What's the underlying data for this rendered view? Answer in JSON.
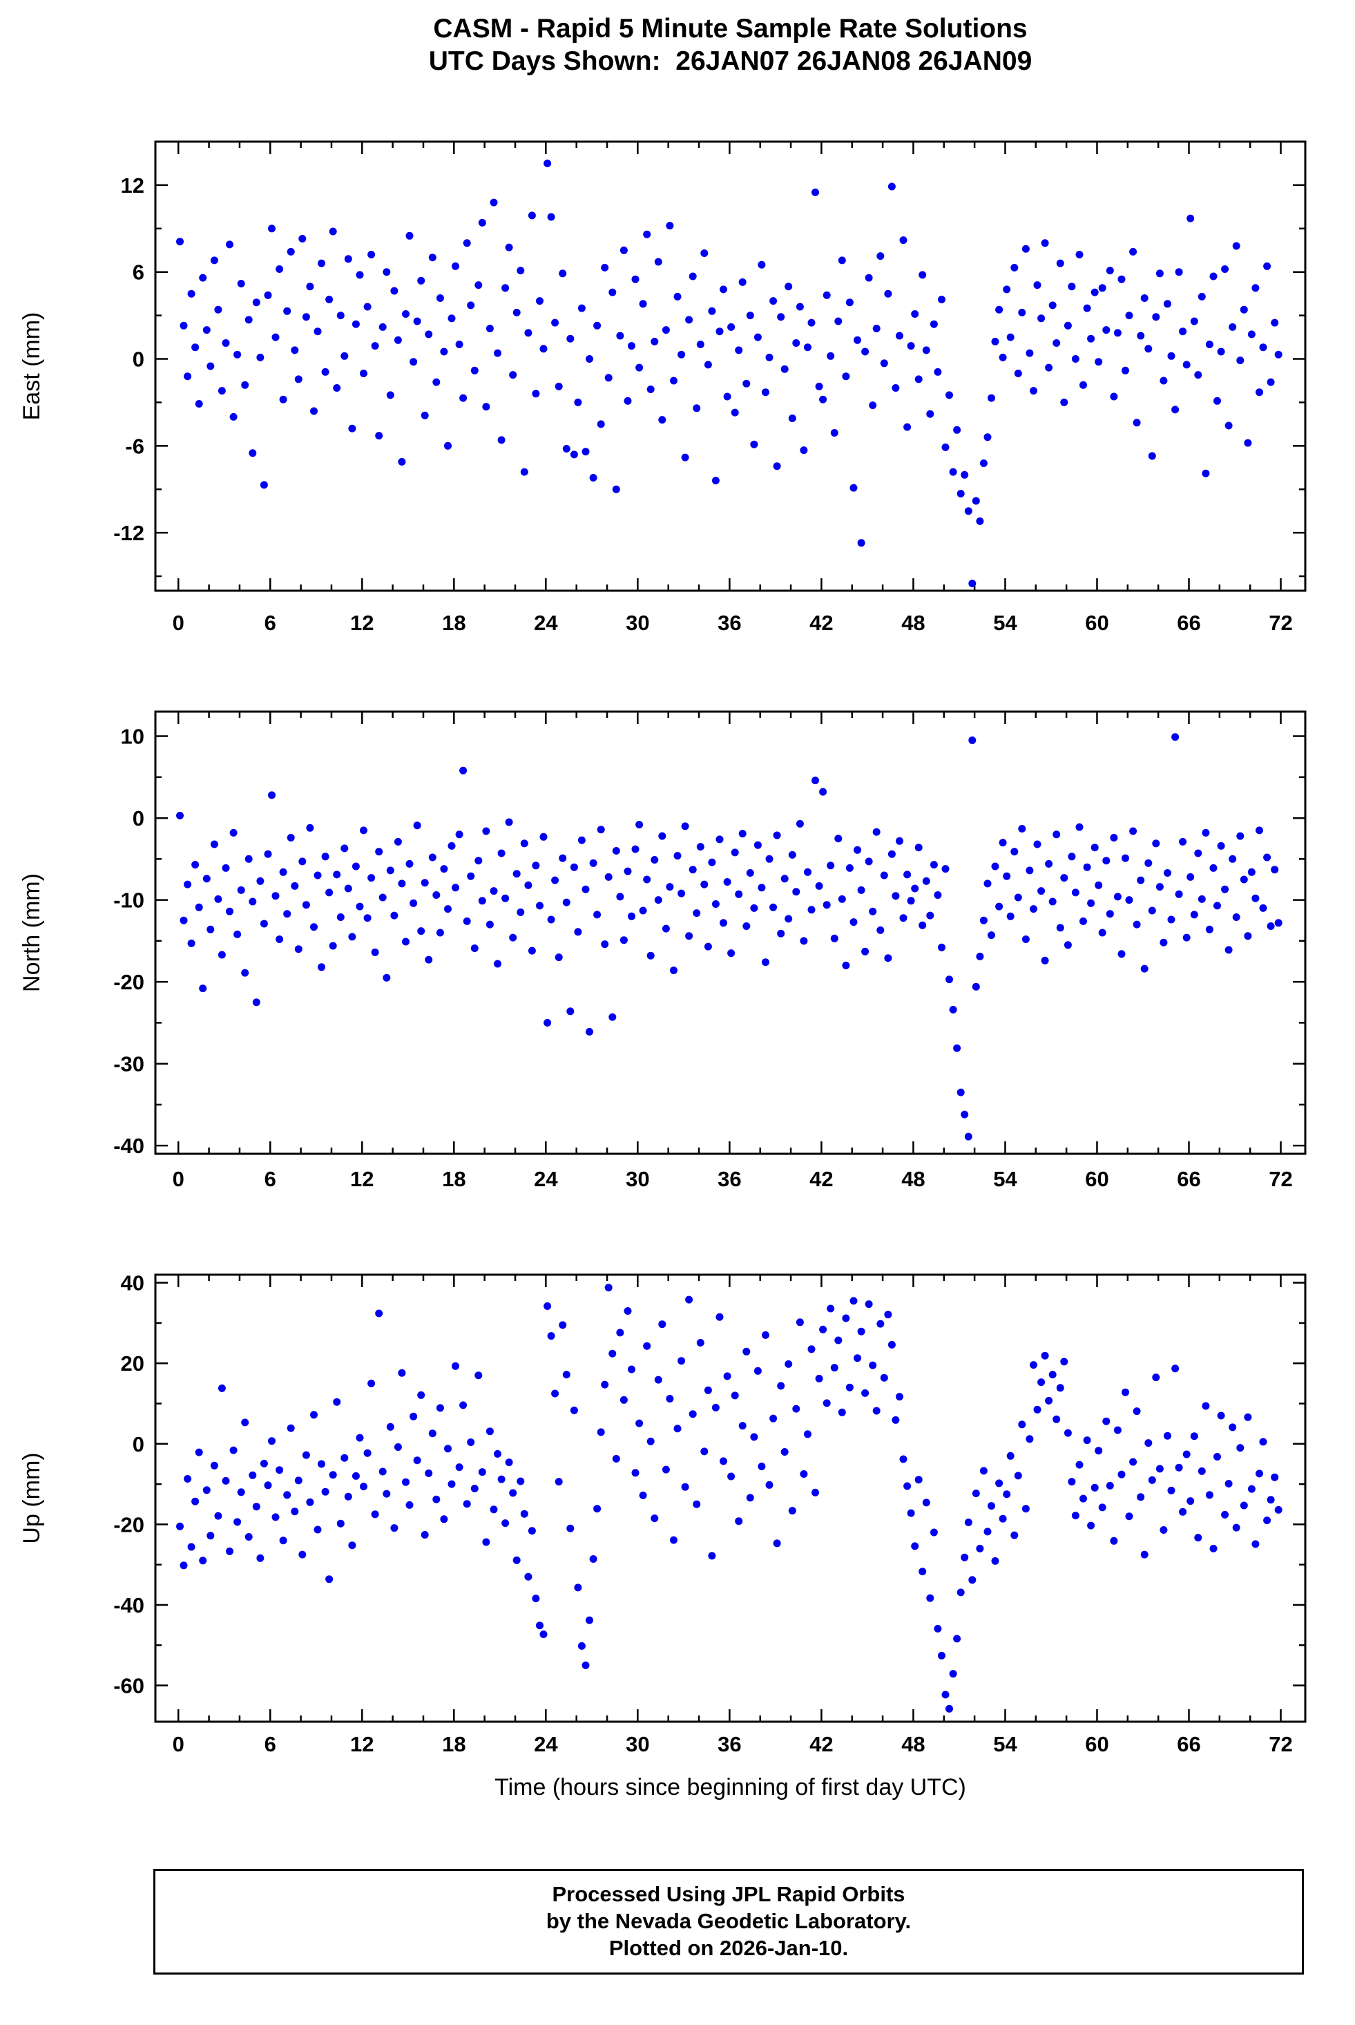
{
  "title": {
    "line1": "CASM - Rapid 5 Minute Sample Rate Solutions",
    "line2": "UTC Days Shown:  26JAN07 26JAN08 26JAN09"
  },
  "footer": {
    "line1": "Processed Using JPL Rapid Orbits",
    "line2": "by the Nevada Geodetic Laboratory.",
    "line3": "Plotted on 2026-Jan-10."
  },
  "chart_data": {
    "type": "scatter",
    "title": "CASM - Rapid 5 Minute Sample Rate Solutions",
    "subtitle": "UTC Days Shown:  26JAN07 26JAN08 26JAN09",
    "xlabel": "Time (hours since beginning of first day UTC)",
    "point_color": "#0000EE",
    "grid": false,
    "legend": "none",
    "x_axis": {
      "lim": [
        -1.5,
        73.6
      ],
      "ticks": [
        0,
        6,
        12,
        18,
        24,
        30,
        36,
        42,
        48,
        54,
        60,
        66,
        72
      ],
      "minor_step": 2
    },
    "sample_interval_hours": 0.25,
    "panels": [
      {
        "id": "east",
        "ylabel": "East (mm)",
        "ylim": [
          -16,
          15
        ],
        "yticks": [
          -12,
          -6,
          0,
          6,
          12
        ],
        "y_minor_step": 3,
        "x_start": 0.1,
        "x_step": 0.25,
        "y": [
          8.1,
          2.3,
          -1.2,
          4.5,
          0.8,
          -3.1,
          5.6,
          2.0,
          -0.5,
          6.8,
          3.4,
          -2.2,
          1.1,
          7.9,
          -4.0,
          0.3,
          5.2,
          -1.8,
          2.7,
          -6.5,
          3.9,
          0.1,
          -8.7,
          4.4,
          9.0,
          1.5,
          6.2,
          -2.8,
          3.3,
          7.4,
          0.6,
          -1.4,
          8.3,
          2.9,
          5.0,
          -3.6,
          1.9,
          6.6,
          -0.9,
          4.1,
          8.8,
          -2.0,
          3.0,
          0.2,
          6.9,
          -4.8,
          2.4,
          5.8,
          -1.0,
          3.6,
          7.2,
          0.9,
          -5.3,
          2.2,
          6.0,
          -2.5,
          4.7,
          1.3,
          -7.1,
          3.1,
          8.5,
          -0.2,
          2.6,
          5.4,
          -3.9,
          1.7,
          7.0,
          -1.6,
          4.2,
          0.5,
          -6.0,
          2.8,
          6.4,
          1.0,
          -2.7,
          8.0,
          3.7,
          -0.8,
          5.1,
          9.4,
          -3.3,
          2.1,
          10.8,
          0.4,
          -5.6,
          4.9,
          7.7,
          -1.1,
          3.2,
          6.1,
          -7.8,
          1.8,
          9.9,
          -2.4,
          4.0,
          0.7,
          13.5,
          9.8,
          2.5,
          -1.9,
          5.9,
          -6.2,
          1.4,
          -6.6,
          -3.0,
          3.5,
          -6.4,
          0.0,
          -8.2,
          2.3,
          -4.5,
          6.3,
          -1.3,
          4.6,
          -9.0,
          1.6,
          7.5,
          -2.9,
          0.9,
          5.5,
          -0.6,
          3.8,
          8.6,
          -2.1,
          1.2,
          6.7,
          -4.2,
          2.0,
          9.2,
          -1.5,
          4.3,
          0.3,
          -6.8,
          2.7,
          5.7,
          -3.4,
          1.0,
          7.3,
          -0.4,
          3.3,
          -8.4,
          1.9,
          4.8,
          -2.6,
          2.2,
          -3.7,
          0.6,
          5.3,
          -1.7,
          3.0,
          -5.9,
          1.5,
          6.5,
          -2.3,
          0.1,
          4.0,
          -7.4,
          2.9,
          -0.7,
          5.0,
          -4.1,
          1.1,
          3.6,
          -6.3,
          0.8,
          2.5,
          11.5,
          -1.9,
          -2.8,
          4.4,
          0.2,
          -5.1,
          2.6,
          6.8,
          -1.2,
          3.9,
          -8.9,
          1.3,
          -12.7,
          0.5,
          5.6,
          -3.2,
          2.1,
          7.1,
          -0.3,
          4.5,
          11.9,
          -2.0,
          1.6,
          8.2,
          -4.7,
          0.9,
          3.1,
          -1.4,
          5.8,
          0.6,
          -3.8,
          2.4,
          -0.9,
          4.1,
          -6.1,
          -2.5,
          -7.8,
          -4.9,
          -9.3,
          -8.0,
          -10.5,
          -15.5,
          -9.8,
          -11.2,
          -7.2,
          -5.4,
          -2.7,
          1.2,
          3.4,
          0.1,
          4.8,
          1.5,
          6.3,
          -1.0,
          3.2,
          7.6,
          0.4,
          -2.2,
          5.1,
          2.8,
          8.0,
          -0.6,
          3.7,
          1.1,
          6.6,
          -3.0,
          2.3,
          5.0,
          0.0,
          7.2,
          -1.8,
          3.5,
          1.4,
          4.6,
          -0.2,
          4.9,
          2.0,
          6.1,
          -2.6,
          1.8,
          5.5,
          -0.8,
          3.0,
          7.4,
          -4.4,
          1.6,
          4.2,
          0.7,
          -6.7,
          2.9,
          5.9,
          -1.5,
          3.8,
          0.2,
          -3.5,
          6.0,
          1.9,
          -0.4,
          9.7,
          2.6,
          -1.1,
          4.3,
          -7.9,
          1.0,
          5.7,
          -2.9,
          0.5,
          6.2,
          -4.6,
          2.2,
          7.8,
          -0.1,
          3.4,
          -5.8,
          1.7,
          4.9,
          -2.3,
          0.8,
          6.4,
          -1.6,
          2.5,
          0.3
        ]
      },
      {
        "id": "north",
        "ylabel": "North (mm)",
        "ylim": [
          -41,
          13
        ],
        "yticks": [
          -40,
          -30,
          -20,
          -10,
          0,
          10
        ],
        "y_minor_step": 5,
        "x_start": 0.1,
        "x_step": 0.25,
        "y": [
          0.3,
          -12.5,
          -8.1,
          -15.3,
          -5.7,
          -10.9,
          -20.8,
          -7.4,
          -13.6,
          -3.2,
          -9.9,
          -16.7,
          -6.1,
          -11.4,
          -1.8,
          -14.2,
          -8.8,
          -18.9,
          -5.0,
          -10.2,
          -22.5,
          -7.7,
          -12.9,
          -4.4,
          2.8,
          -9.5,
          -14.8,
          -6.6,
          -11.7,
          -2.4,
          -8.3,
          -16.0,
          -5.3,
          -10.6,
          -1.2,
          -13.3,
          -7.0,
          -18.2,
          -4.7,
          -9.1,
          -15.6,
          -6.9,
          -12.1,
          -3.7,
          -8.6,
          -14.5,
          -5.9,
          -10.8,
          -1.5,
          -12.2,
          -7.3,
          -16.4,
          -4.1,
          -9.7,
          -19.5,
          -6.4,
          -11.9,
          -2.9,
          -8.0,
          -15.1,
          -5.6,
          -10.4,
          -0.9,
          -13.8,
          -7.9,
          -17.3,
          -4.8,
          -9.4,
          -14.0,
          -6.2,
          -11.1,
          -3.4,
          -8.5,
          -2.0,
          5.8,
          -12.6,
          -7.1,
          -15.9,
          -5.2,
          -10.1,
          -1.6,
          -13.0,
          -8.9,
          -17.8,
          -4.3,
          -9.8,
          -0.5,
          -14.6,
          -6.8,
          -11.5,
          -3.1,
          -8.2,
          -16.2,
          -5.8,
          -10.7,
          -2.3,
          -25.0,
          -12.4,
          -7.6,
          -17.0,
          -4.9,
          -10.3,
          -23.6,
          -6.0,
          -13.9,
          -2.7,
          -8.7,
          -26.1,
          -5.5,
          -11.8,
          -1.4,
          -15.4,
          -7.2,
          -24.3,
          -4.0,
          -9.6,
          -14.9,
          -6.5,
          -12.0,
          -3.8,
          -0.8,
          -11.3,
          -7.5,
          -16.8,
          -5.1,
          -10.0,
          -2.2,
          -13.5,
          -8.4,
          -18.6,
          -4.6,
          -9.2,
          -1.0,
          -14.4,
          -6.3,
          -11.6,
          -3.5,
          -8.1,
          -15.7,
          -5.4,
          -10.5,
          -2.6,
          -12.8,
          -7.8,
          -16.5,
          -4.2,
          -9.3,
          -1.9,
          -13.2,
          -6.7,
          -11.0,
          -3.3,
          -8.5,
          -17.6,
          -5.0,
          -10.9,
          -2.1,
          -14.1,
          -7.4,
          -12.3,
          -4.5,
          -9.0,
          -0.7,
          -15.0,
          -6.6,
          -11.2,
          4.6,
          -8.3,
          3.2,
          -10.6,
          -5.8,
          -14.7,
          -2.5,
          -9.9,
          -18.0,
          -6.1,
          -12.7,
          -3.9,
          -8.8,
          -16.3,
          -5.3,
          -11.4,
          -1.7,
          -13.7,
          -7.0,
          -17.1,
          -4.4,
          -9.5,
          -2.8,
          -12.2,
          -6.9,
          -10.1,
          -8.6,
          -3.6,
          -13.1,
          -7.7,
          -11.9,
          -5.7,
          -9.4,
          -15.8,
          -6.2,
          -19.7,
          -23.4,
          -28.1,
          -33.5,
          -36.2,
          -38.9,
          9.5,
          -20.6,
          -16.9,
          -12.5,
          -8.0,
          -14.3,
          -5.9,
          -10.8,
          -3.0,
          -7.1,
          -12.0,
          -4.1,
          -9.7,
          -1.3,
          -14.8,
          -6.4,
          -11.1,
          -3.2,
          -8.9,
          -17.4,
          -5.6,
          -10.2,
          -2.0,
          -13.4,
          -7.3,
          -15.5,
          -4.7,
          -9.1,
          -1.1,
          -12.6,
          -6.0,
          -10.4,
          -3.6,
          -8.2,
          -14.0,
          -5.2,
          -11.7,
          -2.4,
          -9.6,
          -16.6,
          -4.9,
          -10.0,
          -1.6,
          -13.0,
          -7.6,
          -18.4,
          -5.5,
          -11.3,
          -3.1,
          -8.4,
          -15.2,
          -6.7,
          -12.4,
          9.9,
          -9.3,
          -2.9,
          -14.6,
          -7.2,
          -11.8,
          -4.3,
          -9.9,
          -1.8,
          -13.6,
          -6.1,
          -10.7,
          -3.4,
          -8.7,
          -16.1,
          -5.0,
          -12.1,
          -2.2,
          -7.5,
          -14.4,
          -6.6,
          -9.8,
          -1.5,
          -11.0,
          -4.8,
          -13.2,
          -6.3,
          -12.8
        ]
      },
      {
        "id": "up",
        "ylabel": "Up (mm)",
        "ylim": [
          -69,
          42
        ],
        "yticks": [
          -60,
          -40,
          -20,
          0,
          20,
          40
        ],
        "y_minor_step": 10,
        "x_start": 0.1,
        "x_step": 0.25,
        "y": [
          -20.5,
          -30.2,
          -8.7,
          -25.6,
          -14.3,
          -2.1,
          -29.0,
          -11.5,
          -22.8,
          -5.4,
          -17.9,
          13.8,
          -9.2,
          -26.7,
          -1.6,
          -19.4,
          -12.0,
          5.3,
          -23.1,
          -7.8,
          -15.6,
          -28.4,
          -4.9,
          -10.3,
          0.7,
          -18.2,
          -6.5,
          -24.0,
          -12.7,
          3.9,
          -16.8,
          -9.1,
          -27.5,
          -2.8,
          -14.5,
          7.2,
          -21.3,
          -5.0,
          -11.9,
          -33.6,
          -7.7,
          10.4,
          -19.8,
          -3.5,
          -13.1,
          -25.2,
          -8.0,
          1.5,
          -10.6,
          -2.3,
          15.0,
          -17.5,
          32.4,
          -6.9,
          -12.4,
          4.2,
          -20.9,
          -0.8,
          17.6,
          -9.5,
          -15.2,
          6.8,
          -4.1,
          12.1,
          -22.6,
          -7.3,
          2.6,
          -13.8,
          8.9,
          -18.7,
          -1.2,
          -10.0,
          19.3,
          -5.8,
          9.6,
          -14.9,
          0.4,
          -11.1,
          17.0,
          -7.0,
          -24.4,
          3.1,
          -16.3,
          -2.5,
          -8.8,
          -19.7,
          -4.6,
          -12.2,
          -28.9,
          -9.3,
          -17.4,
          -33.0,
          -21.6,
          -38.4,
          -45.1,
          -47.3,
          34.2,
          26.8,
          12.5,
          -9.4,
          29.5,
          17.2,
          -21.0,
          8.3,
          -35.7,
          -50.2,
          -55.0,
          -43.8,
          -28.6,
          -16.1,
          2.9,
          14.7,
          38.8,
          22.4,
          -3.7,
          27.6,
          10.9,
          33.0,
          18.5,
          -7.2,
          5.1,
          -12.8,
          24.3,
          0.6,
          -18.5,
          15.9,
          29.7,
          -6.4,
          11.2,
          -23.9,
          3.8,
          20.6,
          -10.7,
          35.8,
          7.4,
          -15.0,
          25.1,
          -1.9,
          13.3,
          -27.8,
          9.0,
          31.5,
          -4.3,
          16.8,
          -8.1,
          12.0,
          -19.2,
          4.5,
          22.9,
          -13.4,
          1.7,
          18.1,
          -5.6,
          27.0,
          -10.2,
          6.3,
          -24.7,
          14.4,
          -2.0,
          19.8,
          -16.6,
          8.7,
          30.2,
          -7.5,
          2.4,
          23.5,
          -12.1,
          16.2,
          28.4,
          10.1,
          33.6,
          18.9,
          25.7,
          7.8,
          31.2,
          14.0,
          35.5,
          21.3,
          27.9,
          12.6,
          34.7,
          19.5,
          8.2,
          29.8,
          16.4,
          32.1,
          24.6,
          5.9,
          11.7,
          -3.8,
          -10.5,
          -17.2,
          -25.4,
          -8.9,
          -31.7,
          -14.6,
          -38.3,
          -22.0,
          -45.9,
          -52.6,
          -62.3,
          -65.8,
          -57.1,
          -48.4,
          -36.9,
          -28.2,
          -19.5,
          -33.8,
          -12.3,
          -26.0,
          -6.7,
          -21.8,
          -15.4,
          -29.1,
          -9.8,
          -18.6,
          -12.5,
          -3.0,
          -22.7,
          -7.9,
          4.8,
          -16.1,
          1.2,
          19.6,
          8.5,
          15.3,
          21.9,
          10.7,
          17.2,
          6.1,
          13.9,
          20.4,
          2.7,
          -9.4,
          -17.8,
          -5.2,
          -13.6,
          0.9,
          -20.3,
          -10.9,
          -1.7,
          -15.8,
          5.6,
          -10.4,
          -24.1,
          3.4,
          -7.6,
          12.8,
          -18.0,
          -4.5,
          8.1,
          -13.2,
          -27.5,
          0.2,
          -9.0,
          16.5,
          -6.2,
          -21.4,
          2.0,
          -11.6,
          18.7,
          -5.9,
          -16.9,
          -2.6,
          -14.2,
          1.9,
          -23.3,
          -6.8,
          9.4,
          -12.7,
          -26.0,
          -3.2,
          7.0,
          -17.6,
          -9.9,
          4.1,
          -20.8,
          -1.0,
          -15.3,
          6.6,
          -11.2,
          -24.9,
          -7.4,
          0.5,
          -19.0,
          -13.9,
          -8.3,
          -16.4
        ]
      }
    ]
  }
}
